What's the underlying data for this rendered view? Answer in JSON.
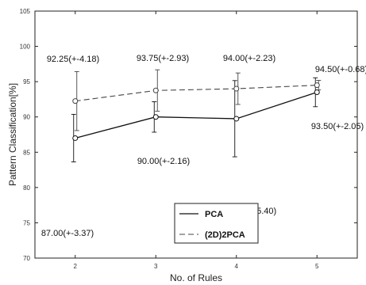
{
  "chart_data": {
    "type": "line",
    "title": "",
    "xlabel": "No. of Rules",
    "ylabel": "Pattern Classification[%]",
    "x": [
      2,
      3,
      4,
      5
    ],
    "x_ticks": [
      "2",
      "3",
      "4",
      "5"
    ],
    "xlim": [
      1.5,
      5.5
    ],
    "ylim": [
      70,
      105
    ],
    "y_ticks": [
      "70",
      "75",
      "80",
      "85",
      "90",
      "95",
      "100",
      "105"
    ],
    "grid": false,
    "legend_position": "bottom-center",
    "series": [
      {
        "name": "PCA",
        "style": "solid",
        "color": "#111111",
        "values": [
          87.0,
          90.0,
          89.75,
          93.5
        ],
        "errors": [
          3.37,
          2.16,
          5.4,
          2.05
        ],
        "labels": [
          "87.00(+-3.37)",
          "90.00(+-2.16)",
          "89.75(+-5.40)",
          "93.50(+-2.05)"
        ]
      },
      {
        "name": "(2D)2PCA",
        "style": "dashed",
        "color": "#444444",
        "values": [
          92.25,
          93.75,
          94.0,
          94.5
        ],
        "errors": [
          4.18,
          2.93,
          2.23,
          0.68
        ],
        "labels": [
          "92.25(+-4.18)",
          "93.75(+-2.93)",
          "94.00(+-2.23)",
          "94.50(+-0.68)"
        ]
      }
    ]
  }
}
